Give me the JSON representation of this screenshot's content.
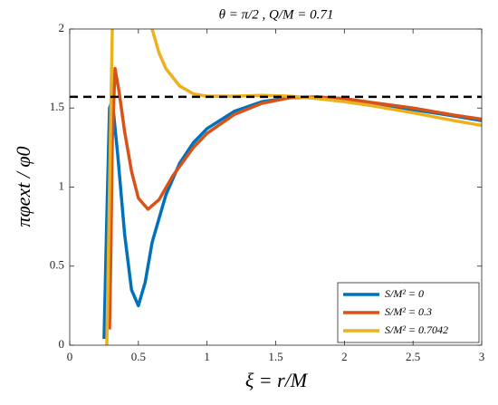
{
  "chart_data": {
    "type": "line",
    "title": "θ = π/2 ,   Q/M = 0.71",
    "x_label": "ξ = r/M",
    "y_label": "πφext / φ0",
    "xlim": [
      0,
      3
    ],
    "ylim": [
      0,
      2
    ],
    "xticks": [
      0,
      0.5,
      1,
      1.5,
      2,
      2.5,
      3
    ],
    "yticks": [
      0,
      0.5,
      1,
      1.5,
      2
    ],
    "reference_line": 1.5708,
    "legend": "lower right",
    "series": [
      {
        "name": "S/M² = 0",
        "color": "#0072BD",
        "x": [
          0.25,
          0.27,
          0.29,
          0.31,
          0.35,
          0.4,
          0.45,
          0.5,
          0.55,
          0.6,
          0.7,
          0.8,
          0.9,
          1.0,
          1.2,
          1.4,
          1.6,
          1.8,
          2.0,
          2.2,
          2.5,
          2.8,
          3.0
        ],
        "values": [
          0.04,
          0.8,
          1.5,
          1.55,
          1.2,
          0.7,
          0.35,
          0.25,
          0.4,
          0.65,
          0.95,
          1.15,
          1.28,
          1.37,
          1.48,
          1.54,
          1.565,
          1.57,
          1.555,
          1.53,
          1.49,
          1.45,
          1.42
        ]
      },
      {
        "name": "S/M² = 0.3",
        "color": "#D95319",
        "x": [
          0.29,
          0.3,
          0.31,
          0.33,
          0.36,
          0.4,
          0.45,
          0.5,
          0.57,
          0.65,
          0.75,
          0.9,
          1.0,
          1.2,
          1.4,
          1.6,
          1.8,
          2.0,
          2.2,
          2.5,
          2.8,
          3.0
        ],
        "values": [
          0.1,
          0.6,
          1.3,
          1.75,
          1.6,
          1.35,
          1.1,
          0.93,
          0.86,
          0.92,
          1.07,
          1.25,
          1.34,
          1.46,
          1.53,
          1.565,
          1.57,
          1.56,
          1.535,
          1.5,
          1.455,
          1.43
        ]
      },
      {
        "name": "S/M² = 0.7042",
        "color": "#EDB120",
        "x": [
          0.27,
          0.29,
          0.31,
          0.45,
          0.6,
          0.65,
          0.7,
          0.8,
          0.9,
          1.0,
          1.2,
          1.4,
          1.6,
          1.8,
          2.0,
          2.2,
          2.5,
          2.8,
          3.0
        ],
        "values": [
          0,
          1.0,
          2.0,
          null,
          2.0,
          1.85,
          1.75,
          1.64,
          1.59,
          1.575,
          1.575,
          1.58,
          1.575,
          1.56,
          1.54,
          1.515,
          1.47,
          1.42,
          1.39
        ]
      }
    ]
  }
}
